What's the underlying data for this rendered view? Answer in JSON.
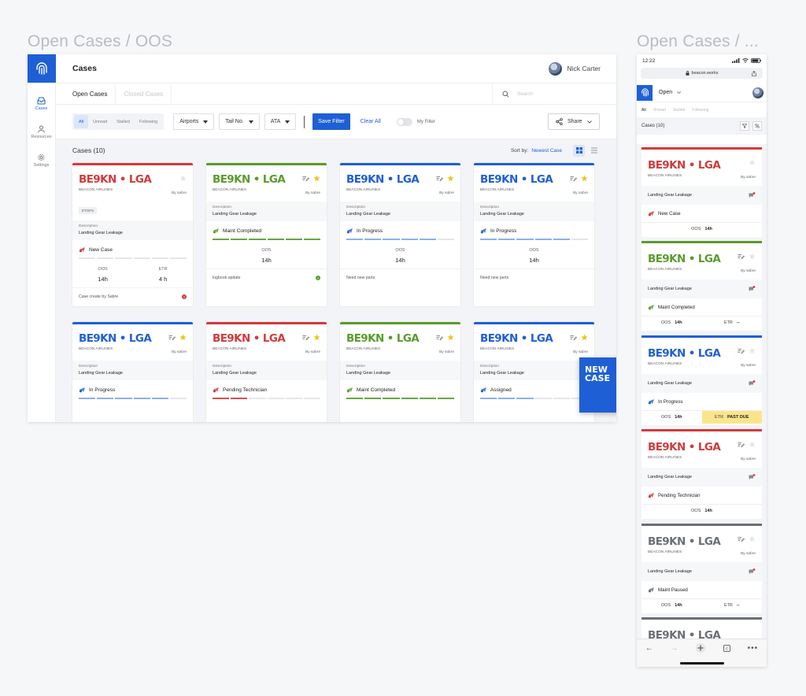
{
  "boards": {
    "desktop_title": "Open Cases / OOS",
    "mobile_title": "Open Cases / ..."
  },
  "colors": {
    "accent": "#1f5fd6",
    "red": "#d13b3b",
    "green": "#5b9a2e",
    "blue": "#1f5fd6",
    "gray": "#6b6f76",
    "star": "#f0c419"
  },
  "desktop": {
    "header": {
      "title": "Cases",
      "user_name": "Nick Carter"
    },
    "sidebar": [
      {
        "label": "Cases",
        "icon": "inbox-icon"
      },
      {
        "label": "Resources",
        "icon": "people-icon"
      },
      {
        "label": "Settings",
        "icon": "gear-icon"
      }
    ],
    "tabs": [
      "Open Cases",
      "Closed Cases"
    ],
    "search_placeholder": "Search",
    "filters": {
      "segments": [
        "All",
        "Unread",
        "Stalled",
        "Following"
      ],
      "dropdowns": [
        "Airports",
        "Tail No.",
        "ATA"
      ],
      "save_filter": "Save Filter",
      "clear_all": "Clear All",
      "my_filter": "My Filter",
      "share": "Share"
    },
    "content": {
      "count_label": "Cases (10)",
      "sort_label": "Sort by:",
      "sort_value": "Newest Case"
    },
    "cards": [
      {
        "route": "BE9KN • LGA",
        "color": "#d13b3b",
        "airline": "BEACON AIRLINES",
        "by": "By sabre",
        "tag": "ETOPS",
        "desc_label": "Description",
        "desc": "Landing Gear Leakage",
        "status": "New Case",
        "progress": 0.08,
        "oos_label": "OOS",
        "oos": "14h",
        "etr_label": "ETR",
        "etr": "4 h",
        "footer": "Case create by Sabre",
        "footer_dot": "#d13b3b",
        "starred": false
      },
      {
        "route": "BE9KN • LGA",
        "color": "#5b9a2e",
        "airline": "BEACON AIRLINES",
        "by": "By sabre",
        "desc_label": "Description",
        "desc": "Landing Gear Leakage",
        "status": "Maint Completed",
        "progress": 1.0,
        "oos_label": "OOS",
        "oos": "14h",
        "footer": "logbook update",
        "footer_dot": "#5b9a2e",
        "starred": true
      },
      {
        "route": "BE9KN • LGA",
        "color": "#1f5fd6",
        "airline": "BEACON AIRLINES",
        "by": "By sabre",
        "desc_label": "Description",
        "desc": "Landing Gear Leakage",
        "status": "In Progress",
        "progress": 0.75,
        "oos_label": "OOS",
        "oos": "14h",
        "footer": "Need new parts",
        "starred": true
      },
      {
        "route": "BE9KN • LGA",
        "color": "#1f5fd6",
        "airline": "BEACON AIRLINES",
        "by": "By sabre",
        "desc_label": "Description",
        "desc": "Landing Gear Leakage",
        "status": "In Progress",
        "progress": 0.75,
        "oos_label": "OOS",
        "oos": "14h",
        "footer": "Need new parts",
        "starred": true
      },
      {
        "route": "BE9KN • LGA",
        "color": "#1f5fd6",
        "airline": "BEACON AIRLINES",
        "by": "By sabre",
        "desc_label": "Description",
        "desc": "Landing Gear Leakage",
        "status": "In Progress",
        "progress": 0.75,
        "starred": true
      },
      {
        "route": "BE9KN • LGA",
        "color": "#d13b3b",
        "airline": "BEACON AIRLINES",
        "by": "By sabre",
        "desc_label": "Description",
        "desc": "Landing Gear Leakage",
        "status": "Pending Technician",
        "progress": 0.25,
        "starred": true
      },
      {
        "route": "BE9KN • LGA",
        "color": "#5b9a2e",
        "airline": "BEACON AIRLINES",
        "by": "By sabre",
        "desc_label": "Description",
        "desc": "Landing Gear Leakage",
        "status": "Maint Completed",
        "progress": 1.0,
        "starred": true
      },
      {
        "route": "BE9KN • LGA",
        "color": "#1f5fd6",
        "airline": "BEACON AIRLINES",
        "by": "By sabre",
        "desc_label": "Description",
        "desc": "Landing Gear Leakage",
        "status": "Assigned",
        "progress": 0.5,
        "starred": true
      }
    ],
    "new_case": "NEW CASE"
  },
  "mobile": {
    "time": "12:22",
    "url": "beacon.works",
    "open_label": "Open",
    "tabs": [
      "All",
      "Unread",
      "Stalled",
      "Following"
    ],
    "count_label": "Cases (10)",
    "cards": [
      {
        "route": "BE9KN • LGA",
        "color": "#d13b3b",
        "airline": "BEACON AIRLINES",
        "by": "By sabre",
        "desc": "Landing Gear Leakage",
        "status": "New Case",
        "oos_label": "OOS",
        "oos": "14h"
      },
      {
        "route": "BE9KN • LGA",
        "color": "#5b9a2e",
        "airline": "BEACON AIRLINES",
        "by": "By sabre",
        "desc": "Landing Gear Leakage",
        "status": "Maint Completed",
        "oos_label": "OOS",
        "oos": "14h",
        "etr_label": "ETR",
        "etr": "--"
      },
      {
        "route": "BE9KN • LGA",
        "color": "#1f5fd6",
        "airline": "BEACON AIRLINES",
        "by": "By sabre",
        "desc": "Landing Gear Leakage",
        "status": "In Progress",
        "oos_label": "OOS",
        "oos": "14h",
        "etr_label": "ETR",
        "etr": "PAST DUE",
        "pastdue": true
      },
      {
        "route": "BE9KN • LGA",
        "color": "#d13b3b",
        "airline": "BEACON AIRLINES",
        "by": "By sabre",
        "desc": "Landing Gear Leakage",
        "status": "Pending Technician",
        "oos_label": "OOS",
        "oos": "14h"
      },
      {
        "route": "BE9KN • LGA",
        "color": "#6b6f76",
        "airline": "BEACON AIRLINES",
        "by": "By sabre",
        "desc": "Landing Gear Leakage",
        "status": "Maint Paused",
        "oos_label": "OOS",
        "oos": "14h",
        "etr_label": "ETR",
        "etr": "--"
      },
      {
        "route": "BE9KN • LGA",
        "color": "#6b6f76",
        "airline": "",
        "by": "",
        "desc": "",
        "status": ""
      }
    ]
  }
}
